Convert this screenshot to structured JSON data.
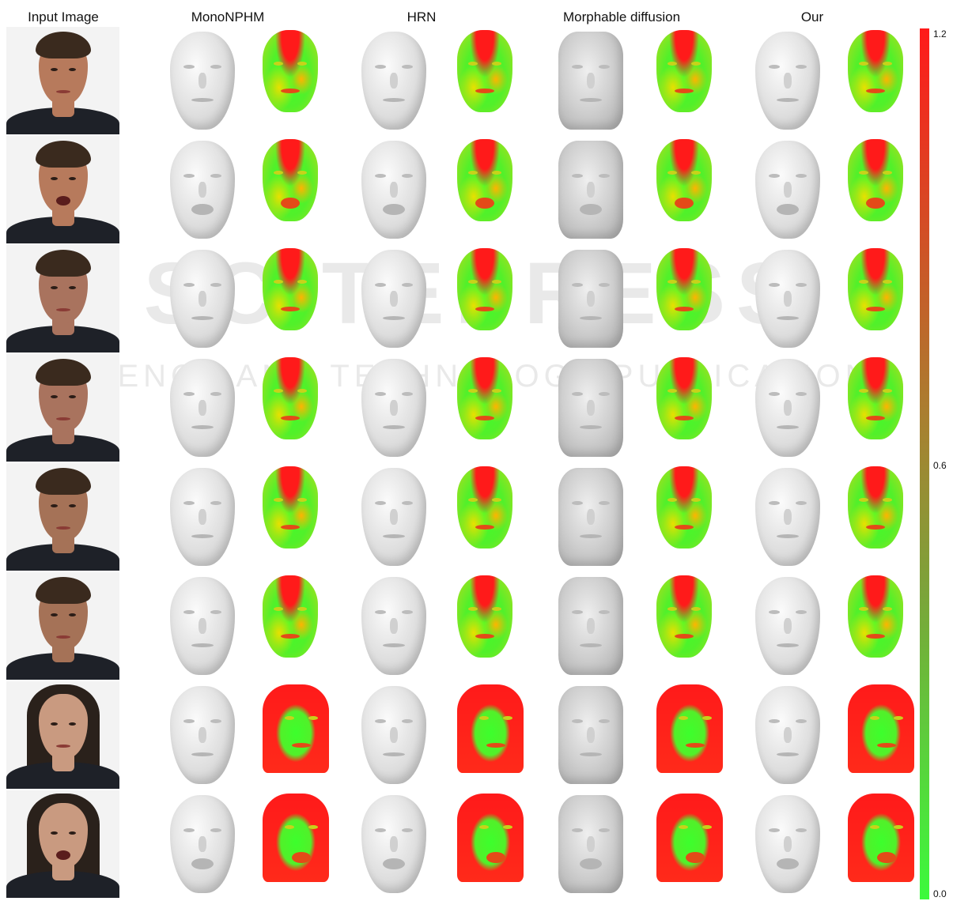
{
  "headers": [
    "Input Image",
    "MonoNPHM",
    "HRN",
    "Morphable diffusion",
    "Our"
  ],
  "colorbar": {
    "max_label": "1.2",
    "mid_label": "0.6",
    "min_label": "0.0",
    "colors": {
      "high": "#ff1a1a",
      "mid": "#a88030",
      "low": "#3cfa3c"
    }
  },
  "watermark": {
    "main": "SCITEPRESS",
    "sub": "SCIENCE AND TECHNOLOGY PUBLICATIONS"
  },
  "rows": [
    {
      "subject": "male-1",
      "expression": "neutral"
    },
    {
      "subject": "male-1",
      "expression": "grimace"
    },
    {
      "subject": "male-2",
      "expression": "neutral"
    },
    {
      "subject": "male-2",
      "expression": "squint-smile"
    },
    {
      "subject": "male-3",
      "expression": "neutral"
    },
    {
      "subject": "male-3",
      "expression": "smile"
    },
    {
      "subject": "female-1",
      "expression": "neutral"
    },
    {
      "subject": "female-1",
      "expression": "mouth-open"
    }
  ]
}
